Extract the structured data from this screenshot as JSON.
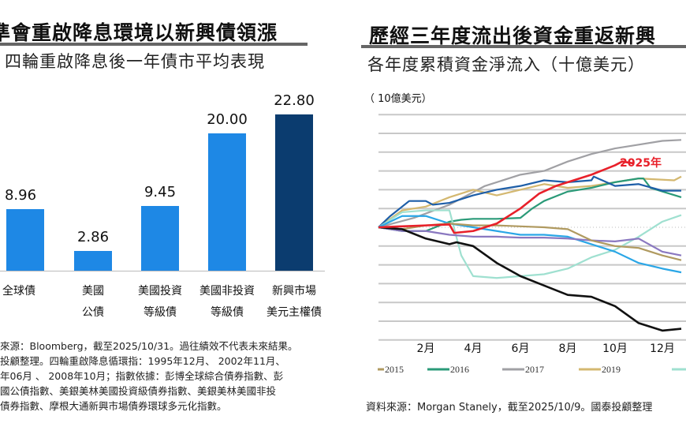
{
  "left": {
    "title": "準會重啟降息環境以新興債領漲",
    "subtitle": "四輪重啟降息後一年債市平均表現",
    "footnotes": [
      "來源：Bloomberg，截至2025/10/31。過往績效不代表未來結果。",
      "投顧整理。四輪重啟降息循環指：1995年12月、 2002年11月、",
      "年06月 、 2008年10月；指數依據：彭博全球綜合債券指數、彭",
      "國公債指數、美銀美林美國投資級債券指數、美銀美林美國非投",
      "債券指數、摩根大通新興市場債券環球多元化指數。"
    ]
  },
  "right": {
    "title": "歷經三年度流出後資金重返新興",
    "subtitle": "各年度累積資金淨流入（十億美元）",
    "unit": "（ 10億美元）",
    "footnote": "資料來源：Morgan Stanely，截至2025/10/9。國泰投顧整理"
  },
  "chart_data": [
    {
      "type": "bar",
      "categories": [
        [
          "全球債"
        ],
        [
          "美國",
          "公債"
        ],
        [
          "美國投資",
          "等級債"
        ],
        [
          "美國非投資",
          "等級債"
        ],
        [
          "新興市場",
          "美元主權債"
        ]
      ],
      "values": [
        8.96,
        2.86,
        9.45,
        20.0,
        22.8
      ],
      "labels": [
        "8.96",
        "2.86",
        "9.45",
        "20.00",
        "22.80"
      ],
      "colors": [
        "#1e88e5",
        "#1e88e5",
        "#1e88e5",
        "#1e88e5",
        "#0b3c6f"
      ],
      "ylim": [
        0,
        24
      ]
    },
    {
      "type": "line",
      "x_unit": "month",
      "x_ticks": [
        "2月",
        "4月",
        "6月",
        "8月",
        "10月",
        "12月"
      ],
      "x_tick_values": [
        2,
        4,
        6,
        8,
        10,
        12
      ],
      "ylim": [
        -6,
        6
      ],
      "grid": true,
      "annotation": "2025年",
      "legend": [
        "2015",
        "2016",
        "2017",
        "2019"
      ],
      "legend_placement": "bottom",
      "series": [
        {
          "name": "2017",
          "color": "#a0a0a4",
          "points": [
            [
              0,
              0
            ],
            [
              1.5,
              0.5
            ],
            [
              3,
              1.2
            ],
            [
              4.5,
              2.2
            ],
            [
              6,
              2.8
            ],
            [
              7,
              3.0
            ],
            [
              8,
              3.5
            ],
            [
              9,
              3.9
            ],
            [
              10,
              4.2
            ],
            [
              11,
              4.4
            ],
            [
              12,
              4.6
            ],
            [
              12.8,
              4.65
            ]
          ]
        },
        {
          "name": "2019",
          "color": "#d4b870",
          "points": [
            [
              0,
              0
            ],
            [
              1,
              0.9
            ],
            [
              2,
              1.1
            ],
            [
              3,
              1.6
            ],
            [
              4,
              2.0
            ],
            [
              5,
              1.7
            ],
            [
              6,
              2.0
            ],
            [
              7,
              2.3
            ],
            [
              8,
              2.1
            ],
            [
              9,
              2.2
            ],
            [
              10,
              2.4
            ],
            [
              11,
              2.6
            ],
            [
              12.5,
              2.5
            ],
            [
              12.8,
              2.7
            ]
          ]
        },
        {
          "name": "2016",
          "color": "#2a9a78",
          "points": [
            [
              0,
              0
            ],
            [
              1,
              -0.2
            ],
            [
              2,
              -0.2
            ],
            [
              3,
              0.3
            ],
            [
              3.5,
              0.4
            ],
            [
              4,
              0.45
            ],
            [
              5,
              0.45
            ],
            [
              6,
              0.5
            ],
            [
              6.5,
              1.0
            ],
            [
              7,
              1.4
            ],
            [
              8,
              1.9
            ],
            [
              9,
              2.1
            ],
            [
              10,
              2.4
            ],
            [
              11,
              2.6
            ],
            [
              11.2,
              2.6
            ],
            [
              11.5,
              2.1
            ],
            [
              12.8,
              1.6
            ]
          ]
        },
        {
          "color": "#1d5ea8",
          "points": [
            [
              0,
              0
            ],
            [
              0.5,
              0.6
            ],
            [
              1.3,
              1.4
            ],
            [
              2,
              1.4
            ],
            [
              2.3,
              1.2
            ],
            [
              3,
              1.3
            ],
            [
              4,
              1.7
            ],
            [
              5,
              2.0
            ],
            [
              6,
              2.2
            ],
            [
              7,
              2.5
            ],
            [
              8,
              2.4
            ],
            [
              9,
              2.5
            ],
            [
              9.1,
              2.7
            ],
            [
              10,
              2.2
            ],
            [
              11,
              2.3
            ],
            [
              12,
              1.95
            ],
            [
              12.8,
              1.95
            ]
          ]
        },
        {
          "color": "#9fe0d0",
          "points": [
            [
              0,
              0
            ],
            [
              1,
              0.8
            ],
            [
              2,
              0.9
            ],
            [
              3,
              0.9
            ],
            [
              3.5,
              -1.5
            ],
            [
              4,
              -2.6
            ],
            [
              5,
              -2.7
            ],
            [
              6,
              -2.6
            ],
            [
              7,
              -2.5
            ],
            [
              8,
              -2.2
            ],
            [
              9,
              -1.6
            ],
            [
              10,
              -1.2
            ],
            [
              11,
              -0.5
            ],
            [
              12,
              0.3
            ],
            [
              12.8,
              0.65
            ]
          ]
        },
        {
          "color": "#2aa6e6",
          "points": [
            [
              0,
              0
            ],
            [
              1,
              0.6
            ],
            [
              2,
              0.6
            ],
            [
              3,
              0.2
            ],
            [
              4,
              0
            ],
            [
              5,
              -0.2
            ],
            [
              6,
              -0.4
            ],
            [
              7,
              -0.4
            ],
            [
              8,
              -0.5
            ],
            [
              9,
              -0.9
            ],
            [
              10,
              -1.3
            ],
            [
              11,
              -1.9
            ],
            [
              12,
              -2.2
            ],
            [
              12.8,
              -2.4
            ]
          ]
        },
        {
          "color": "#8a78c0",
          "points": [
            [
              0,
              0
            ],
            [
              1,
              -0.2
            ],
            [
              2,
              -0.2
            ],
            [
              3,
              -0.4
            ],
            [
              4,
              -0.5
            ],
            [
              5,
              -0.5
            ],
            [
              6,
              -0.55
            ],
            [
              7,
              -0.55
            ],
            [
              8,
              -0.6
            ],
            [
              9,
              -0.7
            ],
            [
              10,
              -0.75
            ],
            [
              11,
              -0.6
            ],
            [
              12,
              -1.3
            ],
            [
              12.8,
              -1.5
            ]
          ]
        },
        {
          "name": "2015",
          "color": "#b09a60",
          "points": [
            [
              0,
              0
            ],
            [
              1,
              -0.1
            ],
            [
              2,
              0.1
            ],
            [
              3,
              0.2
            ],
            [
              4,
              0.1
            ],
            [
              5,
              0.1
            ],
            [
              6,
              0.05
            ],
            [
              7,
              0
            ],
            [
              8,
              -0.1
            ],
            [
              9,
              -0.7
            ],
            [
              10,
              -1.0
            ],
            [
              11,
              -1.1
            ],
            [
              12,
              -1.5
            ],
            [
              12.8,
              -1.75
            ]
          ]
        },
        {
          "color": "#111111",
          "points": [
            [
              0,
              0
            ],
            [
              1,
              -0.1
            ],
            [
              2,
              -0.6
            ],
            [
              3,
              -0.9
            ],
            [
              3.3,
              -0.8
            ],
            [
              4,
              -1.0
            ],
            [
              5,
              -1.9
            ],
            [
              6,
              -2.6
            ],
            [
              7,
              -3.1
            ],
            [
              8,
              -3.6
            ],
            [
              9,
              -3.7
            ],
            [
              10,
              -4.2
            ],
            [
              11,
              -5.1
            ],
            [
              12,
              -5.5
            ],
            [
              12.8,
              -5.4
            ]
          ]
        },
        {
          "name": "2025年",
          "color": "#e8202a",
          "points": [
            [
              0,
              0
            ],
            [
              1,
              0.05
            ],
            [
              2,
              0.1
            ],
            [
              3,
              0.15
            ],
            [
              3.2,
              -0.3
            ],
            [
              4,
              -0.2
            ],
            [
              5,
              0.2
            ],
            [
              6,
              1.0
            ],
            [
              6.8,
              1.8
            ],
            [
              7.5,
              2.2
            ],
            [
              8,
              2.4
            ],
            [
              9,
              2.8
            ],
            [
              10,
              3.3
            ],
            [
              10.3,
              3.5
            ],
            [
              10.8,
              3.4
            ]
          ]
        }
      ]
    }
  ]
}
